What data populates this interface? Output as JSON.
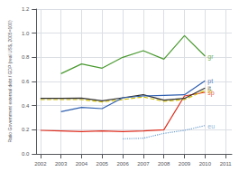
{
  "chart_data": {
    "type": "line",
    "x": [
      2002,
      2003,
      2004,
      2005,
      2006,
      2007,
      2008,
      2009,
      2010,
      2011
    ],
    "series": [
      {
        "name": "eu",
        "color": "#70a0d0",
        "line_style": "dotted",
        "values": [
          null,
          null,
          null,
          null,
          0.125,
          0.13,
          0.17,
          0.195,
          0.235,
          null
        ]
      },
      {
        "name": "sp",
        "color": "#e03020",
        "line_style": "solid",
        "values": [
          0.195,
          0.19,
          0.185,
          0.19,
          0.185,
          0.19,
          0.2,
          0.48,
          0.51,
          null
        ]
      },
      {
        "name": "ie",
        "color": "#d4c000",
        "line_style": "dashed",
        "values": [
          0.45,
          0.45,
          0.45,
          0.43,
          0.45,
          0.472,
          0.435,
          0.45,
          0.525,
          null
        ]
      },
      {
        "name": "it",
        "color": "#303030",
        "line_style": "solid",
        "values": [
          0.46,
          0.46,
          0.462,
          0.44,
          0.465,
          0.49,
          0.445,
          0.46,
          0.545,
          null
        ]
      },
      {
        "name": "pt",
        "color": "#3060b0",
        "line_style": "solid",
        "values": [
          null,
          0.35,
          0.385,
          0.375,
          0.465,
          0.48,
          0.485,
          0.49,
          0.605,
          null
        ]
      },
      {
        "name": "gr",
        "color": "#4a9a30",
        "line_style": "solid",
        "values": [
          null,
          0.665,
          0.745,
          0.71,
          0.8,
          0.855,
          0.785,
          0.98,
          0.81,
          null
        ]
      }
    ],
    "ylabel": "Ratio Government external debt / GDP (real US$, 2005=100)",
    "xlim": [
      2001.8,
      2011.3
    ],
    "ylim": [
      0.0,
      1.2
    ],
    "xticks": [
      2002,
      2003,
      2004,
      2005,
      2006,
      2007,
      2008,
      2009,
      2010,
      2011
    ],
    "yticks": [
      {
        "value": 0.0,
        "label": "0.0"
      },
      0.2,
      0.4,
      0.6,
      0.8,
      {
        "value": 1.0,
        "label": "1.0"
      },
      1.2
    ],
    "grid": true,
    "annotations": [
      {
        "text": "eu",
        "x": 2010,
        "y": 0.23,
        "color": "#70a0d0"
      },
      {
        "text": "sp",
        "x": 2010,
        "y": 0.51,
        "color": "#e03020"
      },
      {
        "text": "ie",
        "x": 2010,
        "y": 0.52,
        "color": "#d4c000"
      },
      {
        "text": "it",
        "x": 2010,
        "y": 0.545,
        "color": "#303030"
      },
      {
        "text": "pt",
        "x": 2010,
        "y": 0.605,
        "color": "#3060b0"
      },
      {
        "text": "gr",
        "x": 2010,
        "y": 0.81,
        "color": "#4a9a30"
      }
    ]
  }
}
